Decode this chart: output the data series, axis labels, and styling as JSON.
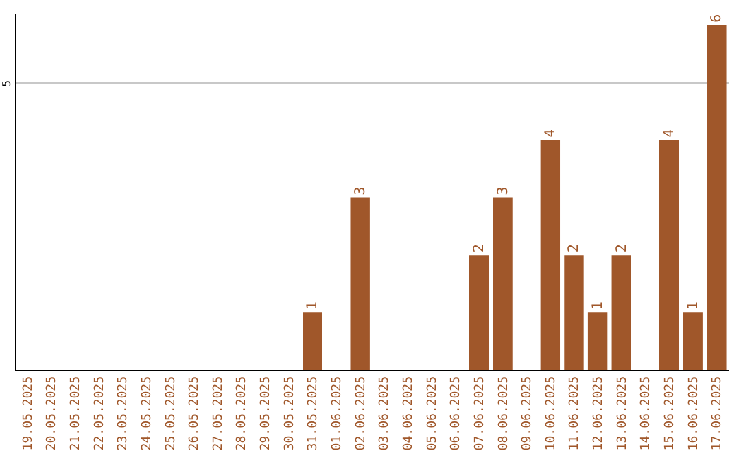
{
  "chart_data": {
    "type": "bar",
    "categories": [
      "19.05.2025",
      "20.05.2025",
      "21.05.2025",
      "22.05.2025",
      "23.05.2025",
      "24.05.2025",
      "25.05.2025",
      "26.05.2025",
      "27.05.2025",
      "28.05.2025",
      "29.05.2025",
      "30.05.2025",
      "31.05.2025",
      "01.06.2025",
      "02.06.2025",
      "03.06.2025",
      "04.06.2025",
      "05.06.2025",
      "06.06.2025",
      "07.06.2025",
      "08.06.2025",
      "09.06.2025",
      "10.06.2025",
      "11.06.2025",
      "12.06.2025",
      "13.06.2025",
      "14.06.2025",
      "15.06.2025",
      "16.06.2025",
      "17.06.2025"
    ],
    "values": [
      null,
      null,
      null,
      null,
      null,
      null,
      null,
      null,
      null,
      null,
      null,
      null,
      1,
      null,
      3,
      null,
      null,
      null,
      null,
      2,
      3,
      null,
      4,
      2,
      1,
      2,
      null,
      4,
      1,
      6
    ],
    "color": "#a0572a",
    "ylim": [
      0,
      6.2
    ],
    "yticks": [
      5
    ],
    "grid": "y",
    "data_labels": true
  }
}
